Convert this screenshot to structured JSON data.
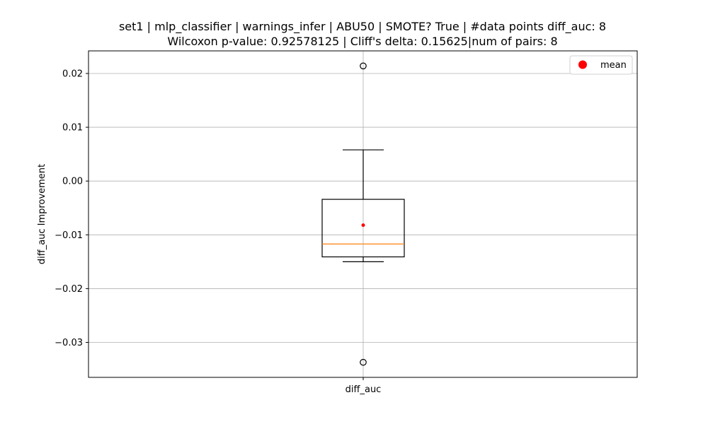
{
  "chart_data": {
    "type": "box",
    "title_line1": "set1 | mlp_classifier | warnings_infer | ABU50 | SMOTE? True | #data points diff_auc: 8",
    "title_line2": "Wilcoxon p-value: 0.92578125 | Cliff's delta: 0.15625|num of pairs: 8",
    "xlabel": "",
    "ylabel": "diff_auc Improvement",
    "categories": [
      "diff_auc"
    ],
    "ylim": [
      -0.0365,
      0.0242
    ],
    "yticks": [
      0.02,
      0.01,
      0.0,
      -0.01,
      -0.02,
      -0.03
    ],
    "ytick_labels": [
      "0.02",
      "0.01",
      "0.00",
      "−0.01",
      "−0.02",
      "−0.03"
    ],
    "grid": true,
    "legend": {
      "placement": "top-right",
      "entries": [
        {
          "label": "mean",
          "color": "#ff0000"
        }
      ]
    },
    "box": {
      "whisker_low": -0.015,
      "q1": -0.0141,
      "median": -0.0117,
      "q3": -0.0034,
      "whisker_high": 0.0058,
      "mean": -0.0082,
      "outliers": [
        0.0214,
        -0.0337
      ]
    },
    "colors": {
      "box": "#000000",
      "median": "#ff7f0e",
      "mean": "#ff0000",
      "grid": "#b0b0b0"
    }
  }
}
